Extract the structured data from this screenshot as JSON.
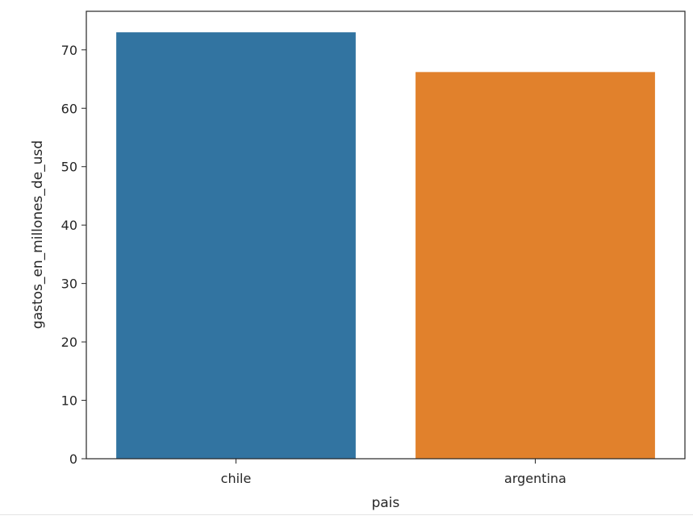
{
  "chart_data": {
    "type": "bar",
    "categories": [
      "chile",
      "argentina"
    ],
    "values": [
      73,
      66.2
    ],
    "colors": [
      "#3274a1",
      "#e1812c"
    ],
    "xlabel": "pais",
    "ylabel": "gastos_en_millones_de_usd",
    "ylim": [
      0,
      76.6
    ],
    "yticks": [
      0,
      10,
      20,
      30,
      40,
      50,
      60,
      70
    ],
    "grid": false,
    "legend": false
  }
}
